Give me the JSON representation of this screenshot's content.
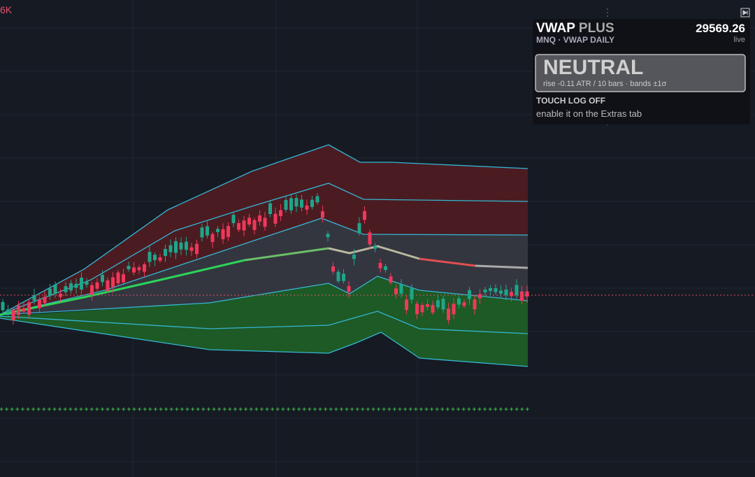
{
  "axis_label": "6K",
  "panel": {
    "title": "VWAP",
    "title_suffix": "PLUS",
    "price": "29569.26",
    "subtitle": "MNQ · VWAP DAILY",
    "status": "live",
    "state": "NEUTRAL",
    "state_detail": "rise -0.11 ATR / 10 bars · bands ±1σ",
    "log_title": "TOUCH LOG OFF",
    "log_hint": "enable it on the Extras tab"
  }
}
